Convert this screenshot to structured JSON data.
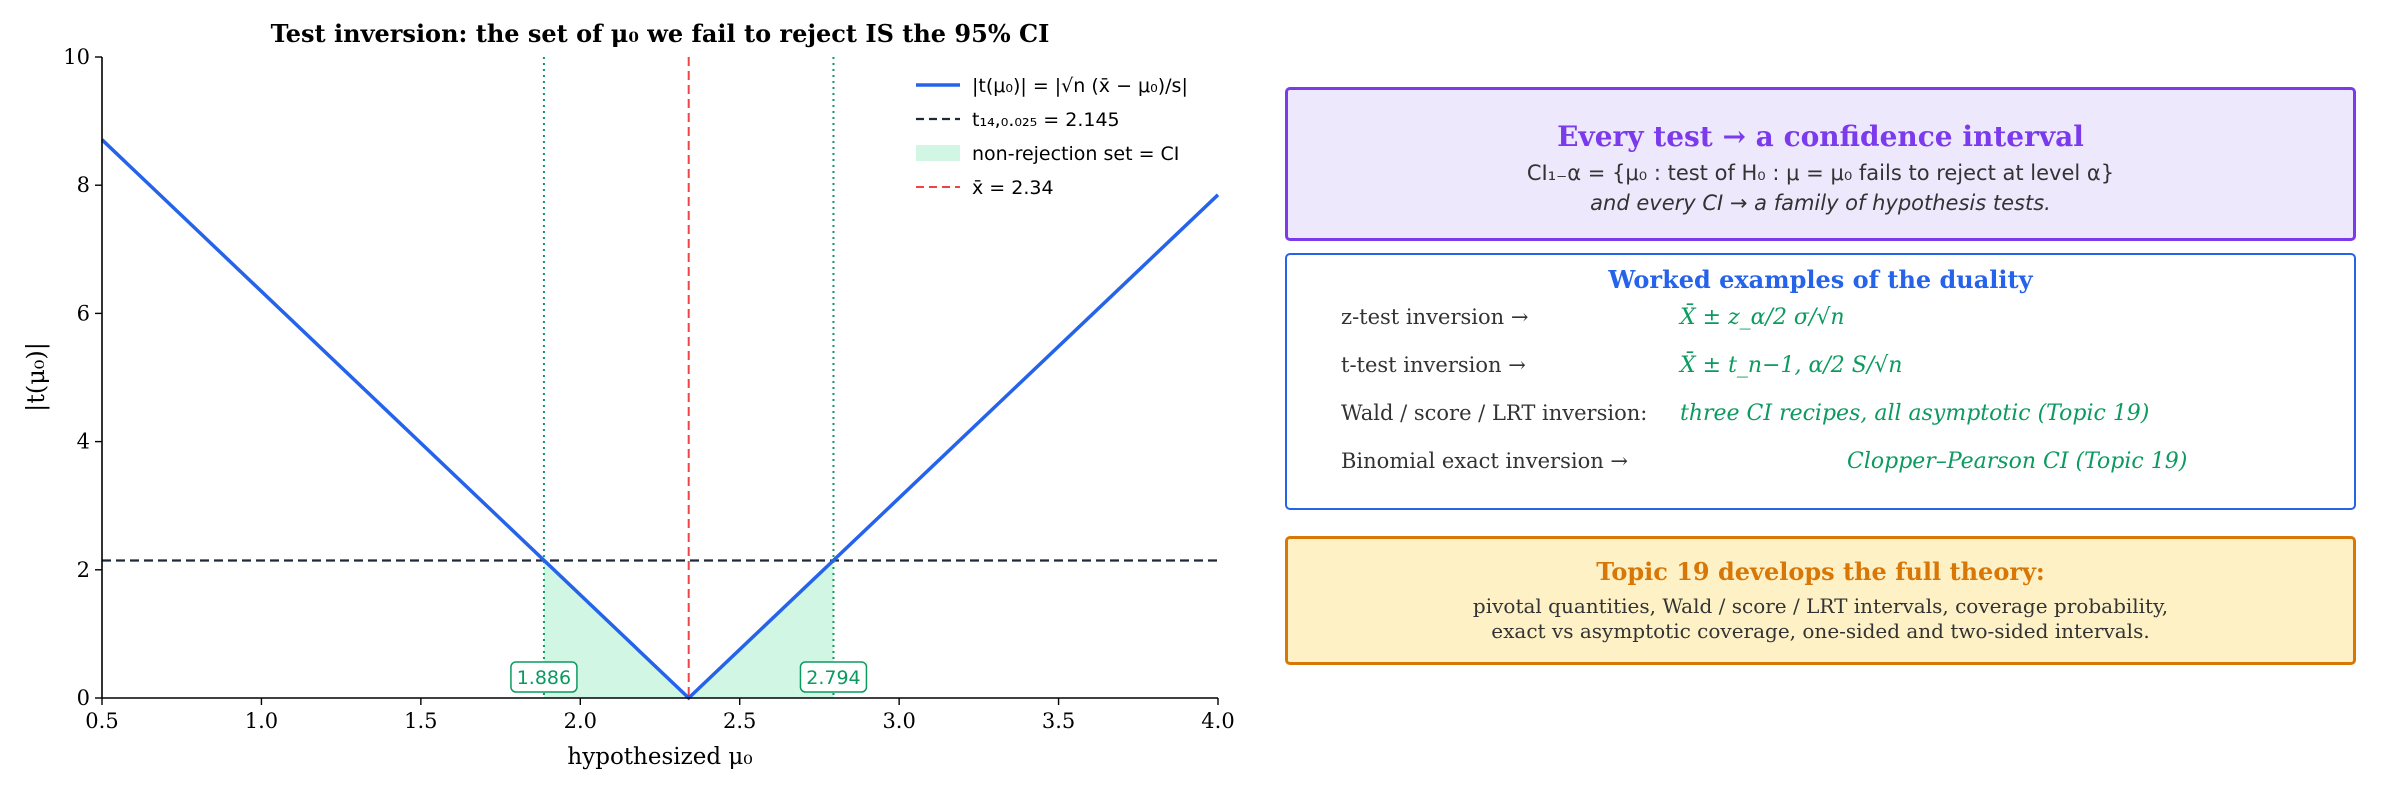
{
  "chart_data": {
    "type": "line",
    "title": "Test inversion: the set of μ₀ we fail to reject IS the 95% CI",
    "xlabel": "hypothesized μ₀",
    "ylabel": "|t(μ₀)|",
    "xlim": [
      0.5,
      4.0
    ],
    "ylim": [
      0,
      10
    ],
    "x_ticks": [
      "0.5",
      "1.0",
      "1.5",
      "2.0",
      "2.5",
      "3.0",
      "3.5",
      "4.0"
    ],
    "y_ticks": [
      "0",
      "2",
      "4",
      "6",
      "8",
      "10"
    ],
    "series": [
      {
        "name": "|t(μ₀)| = |√n (x̄ − μ₀)/s|",
        "color": "#2563eb",
        "style": "solid",
        "x": [
          0.5,
          2.34,
          4.0
        ],
        "y": [
          8.71,
          0.0,
          7.85
        ]
      }
    ],
    "critical_value": {
      "name": "t₁₄,₀.₀₂₅ = 2.145",
      "y": 2.145,
      "color": "#1f2937",
      "style": "dashed"
    },
    "xbar": {
      "name": "x̄ = 2.34",
      "x": 2.34,
      "color": "#ef4444",
      "style": "dashed"
    },
    "ci_region": {
      "name": "non-rejection set  =  CI",
      "lower": 1.886,
      "upper": 2.794,
      "color": "#d1f7e4"
    },
    "bound_labels": [
      "1.886",
      "2.794"
    ],
    "legend_position": "top-right",
    "grid": false
  },
  "box1": {
    "title": "Every test → a confidence interval",
    "line1": "CI₁₋α = {μ₀ :  test of H₀ : μ = μ₀ fails to reject at level α}",
    "line2": "and every CI → a family of hypothesis tests."
  },
  "box2": {
    "title": "Worked examples of the duality",
    "rows": [
      {
        "left": "z-test inversion  →",
        "right": "X̄ ± z_α/2 σ/√n"
      },
      {
        "left": "t-test inversion  →",
        "right": "X̄ ± t_n−1, α/2 S/√n"
      },
      {
        "left": "Wald / score / LRT inversion:",
        "right": "three CI recipes, all asymptotic (Topic 19)"
      },
      {
        "left": "Binomial exact inversion  →",
        "right": "Clopper–Pearson CI (Topic 19)"
      }
    ]
  },
  "box3": {
    "title": "Topic 19 develops the full theory:",
    "line1": "pivotal quantities, Wald / score / LRT intervals, coverage probability,",
    "line2": "exact vs asymptotic coverage, one-sided and two-sided intervals."
  },
  "colors": {
    "accent_purple": "#7c3aed",
    "accent_blue": "#2563eb",
    "accent_orange": "#d97706",
    "accent_green": "#0b9a5f"
  }
}
